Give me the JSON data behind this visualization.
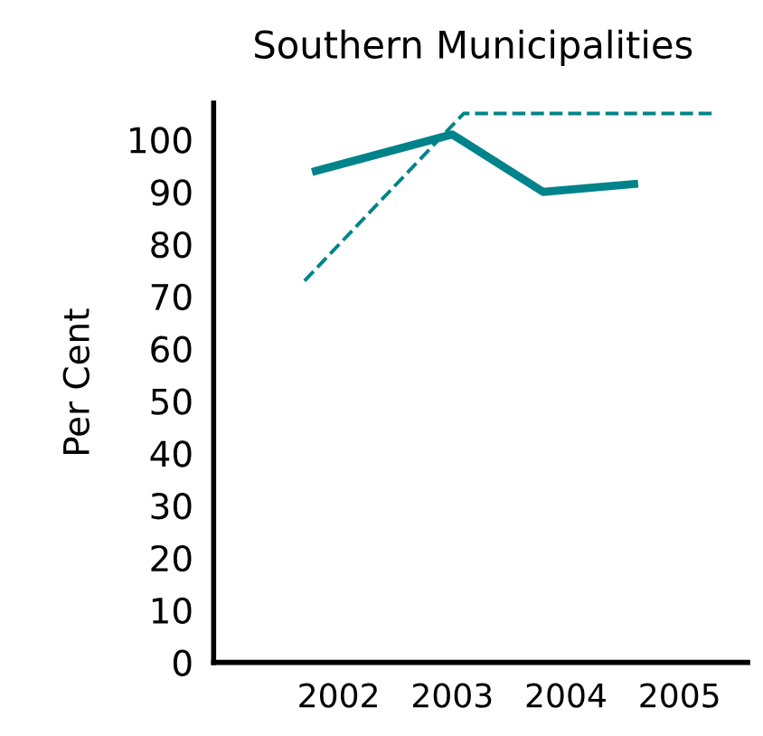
{
  "chart_data": {
    "type": "line",
    "title": "Southern Municipalities",
    "ylabel": "Per Cent",
    "series": [
      {
        "color": "#00838a",
        "line_style": "solid",
        "x": [
          2001.8,
          2003,
          2003.8,
          2004.6
        ],
        "values": [
          94,
          101,
          90,
          91.5
        ]
      },
      {
        "color": "#00838a",
        "line_style": "dashed",
        "x": [
          2001.7,
          2003.1,
          2005.3
        ],
        "values": [
          73,
          105,
          105
        ]
      }
    ],
    "xlim": [
      2000.9,
      2005.6
    ],
    "xticks": [
      2002,
      2003,
      2004,
      2005
    ],
    "ylim": [
      0,
      107
    ],
    "yticks": [
      0,
      10,
      20,
      30,
      40,
      50,
      60,
      70,
      80,
      90,
      100
    ],
    "grid": false,
    "legend": false,
    "marker": "none"
  }
}
